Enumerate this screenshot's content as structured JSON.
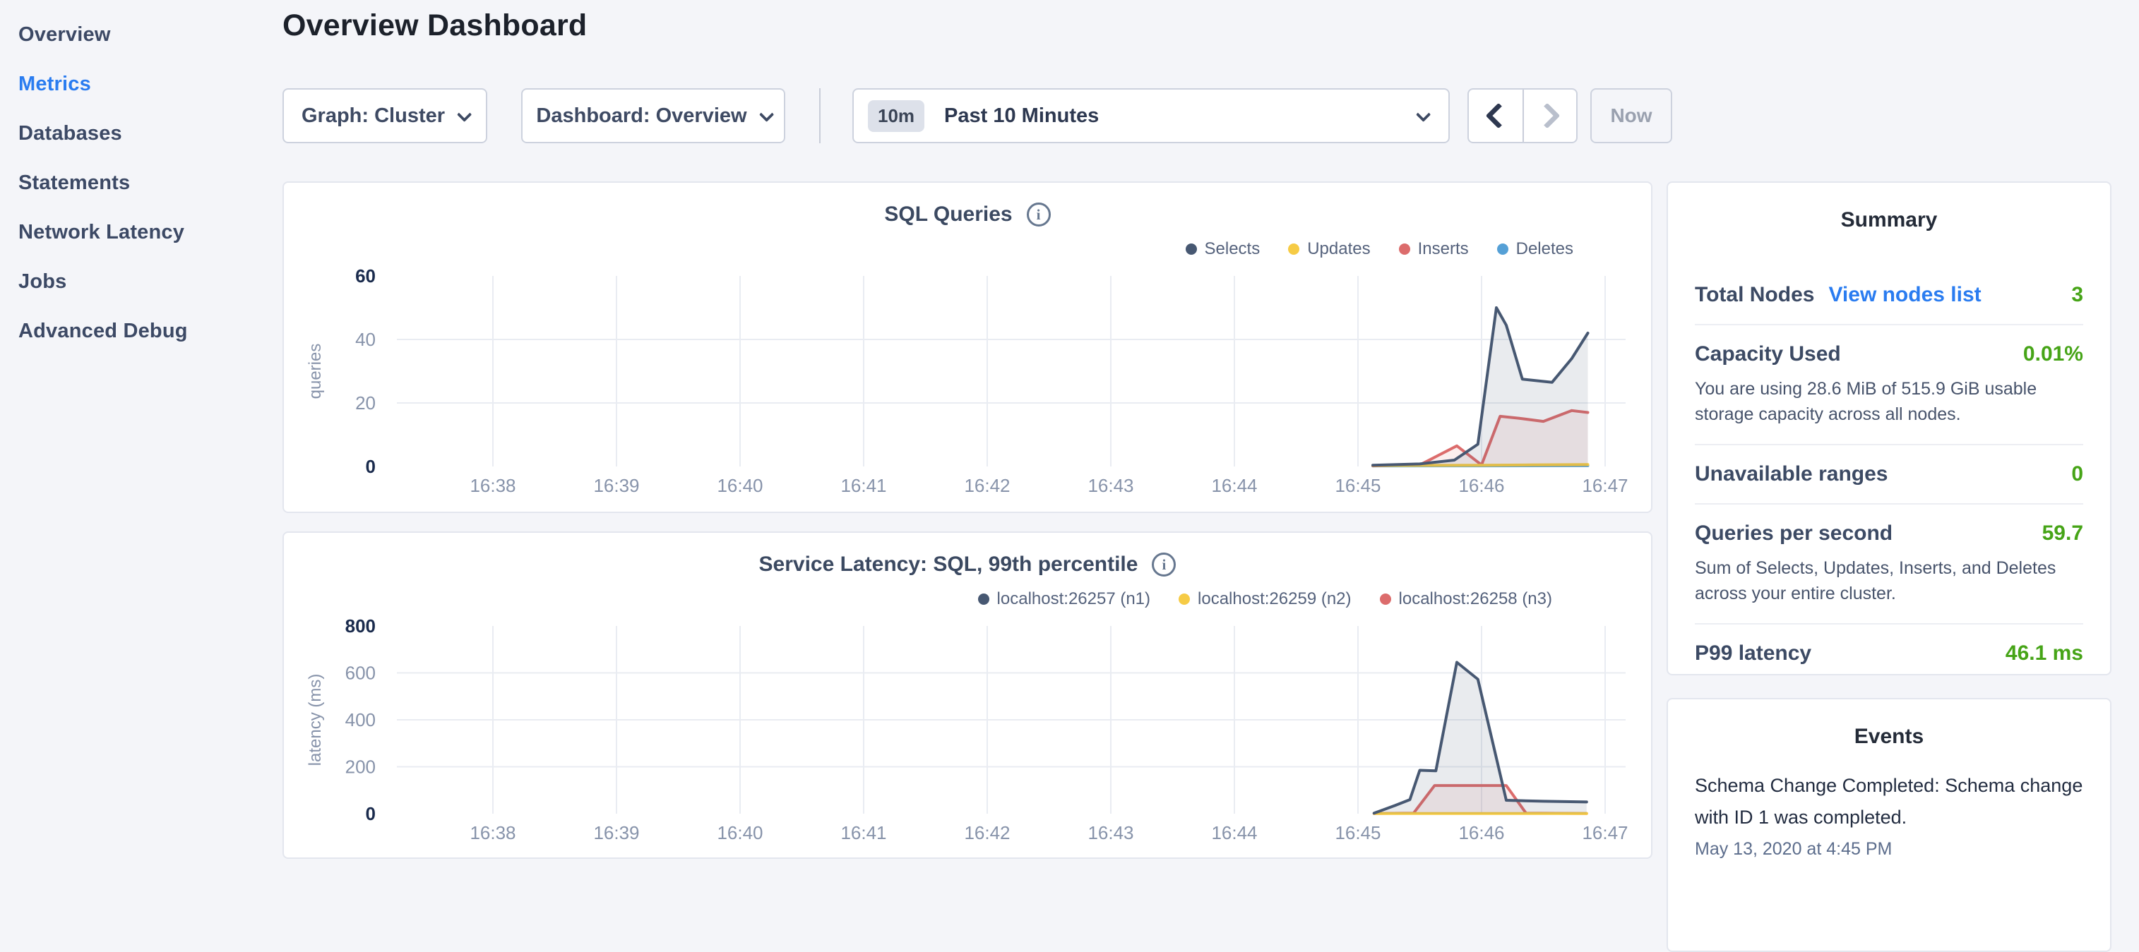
{
  "sidebar": {
    "items": [
      {
        "label": "Overview",
        "active": false
      },
      {
        "label": "Metrics",
        "active": true
      },
      {
        "label": "Databases",
        "active": false
      },
      {
        "label": "Statements",
        "active": false
      },
      {
        "label": "Network Latency",
        "active": false
      },
      {
        "label": "Jobs",
        "active": false
      },
      {
        "label": "Advanced Debug",
        "active": false
      }
    ]
  },
  "header": {
    "title": "Overview Dashboard"
  },
  "controls": {
    "graph_dropdown": {
      "label": "Graph: Cluster"
    },
    "dashboard_dropdown": {
      "label": "Dashboard: Overview"
    },
    "time_window": {
      "badge": "10m",
      "label": "Past 10 Minutes"
    },
    "now_button": {
      "label": "Now"
    }
  },
  "colors": {
    "accent_blue": "#2a7cf0",
    "value_green": "#46a417",
    "series_navy": "#475872",
    "series_yellow": "#f6cb45",
    "series_red": "#dc6c6c",
    "series_blue": "#55a0d6"
  },
  "chart_data": [
    {
      "type": "area",
      "title": "SQL Queries",
      "ylabel": "queries",
      "x_ticks": [
        "16:38",
        "16:39",
        "16:40",
        "16:41",
        "16:42",
        "16:43",
        "16:44",
        "16:45",
        "16:46",
        "16:47"
      ],
      "y_ticks": [
        0,
        20,
        40,
        60
      ],
      "ylim": [
        0,
        60
      ],
      "grid": true,
      "legend_position": "top-right",
      "x_unit_note": "x = minutes after 16:37",
      "series": [
        {
          "name": "Selects",
          "color": "#475872",
          "fill": "rgba(71,88,114,0.12)",
          "points": [
            [
              8.12,
              0.4
            ],
            [
              8.5,
              0.8
            ],
            [
              8.78,
              2
            ],
            [
              8.97,
              7
            ],
            [
              9.12,
              50
            ],
            [
              9.2,
              44.5
            ],
            [
              9.33,
              27.5
            ],
            [
              9.45,
              27
            ],
            [
              9.57,
              26.5
            ],
            [
              9.73,
              34
            ],
            [
              9.86,
              42
            ]
          ]
        },
        {
          "name": "Updates",
          "color": "#f6cb45",
          "fill": "rgba(246,203,69,0.12)",
          "points": [
            [
              8.12,
              0.3
            ],
            [
              8.6,
              0.35
            ],
            [
              9.0,
              0.4
            ],
            [
              9.4,
              0.5
            ],
            [
              9.86,
              0.6
            ]
          ]
        },
        {
          "name": "Inserts",
          "color": "#dc6c6c",
          "fill": "rgba(220,108,108,0.11)",
          "points": [
            [
              8.12,
              0.2
            ],
            [
              8.5,
              0.5
            ],
            [
              8.8,
              6.5
            ],
            [
              9.0,
              0.5
            ],
            [
              9.15,
              15.8
            ],
            [
              9.3,
              15.2
            ],
            [
              9.5,
              14.2
            ],
            [
              9.73,
              17.6
            ],
            [
              9.86,
              17
            ]
          ]
        },
        {
          "name": "Deletes",
          "color": "#55a0d6",
          "fill": "rgba(85,160,214,0.12)",
          "points": [
            [
              8.12,
              0.15
            ],
            [
              9.0,
              0.2
            ],
            [
              9.86,
              0.25
            ]
          ]
        }
      ]
    },
    {
      "type": "area",
      "title": "Service Latency: SQL, 99th percentile",
      "ylabel": "latency (ms)",
      "x_ticks": [
        "16:38",
        "16:39",
        "16:40",
        "16:41",
        "16:42",
        "16:43",
        "16:44",
        "16:45",
        "16:46",
        "16:47"
      ],
      "y_ticks": [
        0,
        200,
        400,
        600,
        800
      ],
      "ylim": [
        0,
        800
      ],
      "grid": true,
      "legend_position": "top-right",
      "x_unit_note": "x = minutes after 16:37",
      "series": [
        {
          "name": "localhost:26257 (n1)",
          "color": "#475872",
          "fill": "rgba(71,88,114,0.12)",
          "points": [
            [
              8.13,
              2
            ],
            [
              8.3,
              35
            ],
            [
              8.42,
              60
            ],
            [
              8.5,
              185
            ],
            [
              8.63,
              183
            ],
            [
              8.8,
              645
            ],
            [
              8.97,
              573
            ],
            [
              9.2,
              57
            ],
            [
              9.5,
              53
            ],
            [
              9.85,
              50
            ]
          ]
        },
        {
          "name": "localhost:26259 (n2)",
          "color": "#f6cb45",
          "fill": "rgba(246,203,69,0.12)",
          "points": [
            [
              8.13,
              1
            ],
            [
              9.0,
              1
            ],
            [
              9.85,
              1
            ]
          ]
        },
        {
          "name": "localhost:26258 (n3)",
          "color": "#dc6c6c",
          "fill": "rgba(220,108,108,0.11)",
          "points": [
            [
              8.13,
              1
            ],
            [
              8.45,
              2
            ],
            [
              8.62,
              120
            ],
            [
              9.2,
              120
            ],
            [
              9.36,
              2
            ],
            [
              9.85,
              1
            ]
          ]
        }
      ]
    }
  ],
  "summary": {
    "title": "Summary",
    "rows": [
      {
        "label": "Total Nodes",
        "link": "View nodes list",
        "value": "3"
      },
      {
        "label": "Capacity Used",
        "value": "0.01%",
        "description": "You are using 28.6 MiB of 515.9 GiB usable storage capacity across all nodes."
      },
      {
        "label": "Unavailable ranges",
        "value": "0"
      },
      {
        "label": "Queries per second",
        "value": "59.7",
        "description": "Sum of Selects, Updates, Inserts, and Deletes across your entire cluster."
      },
      {
        "label": "P99 latency",
        "value": "46.1 ms"
      }
    ]
  },
  "events": {
    "title": "Events",
    "items": [
      {
        "message": "Schema Change Completed: Schema change with ID 1 was completed.",
        "timestamp": "May 13, 2020 at 4:45 PM"
      }
    ]
  }
}
